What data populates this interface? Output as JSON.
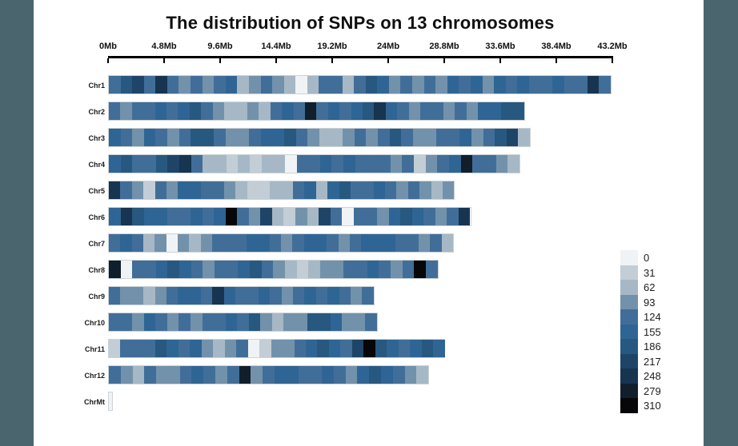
{
  "title": "The distribution of SNPs on 13 chromosomes",
  "frame_color": "#4b656e",
  "axis": {
    "unit": "Mb",
    "tick_labels": [
      "0Mb",
      "4.8Mb",
      "9.6Mb",
      "14.4Mb",
      "19.2Mb",
      "24Mb",
      "28.8Mb",
      "33.6Mb",
      "38.4Mb",
      "43.2Mb"
    ],
    "tick_positions_mb": [
      0,
      4.8,
      9.6,
      14.4,
      19.2,
      24,
      28.8,
      33.6,
      38.4,
      43.2
    ],
    "max_mb": 43.2
  },
  "legend": {
    "values": [
      0,
      31,
      62,
      93,
      124,
      155,
      186,
      217,
      248,
      279,
      310
    ],
    "colors": {
      "0": "#f0f3f5",
      "31": "#c3cdd5",
      "62": "#a6b8c5",
      "93": "#7292ab",
      "124": "#416e99",
      "155": "#2f6594",
      "186": "#275880",
      "217": "#1e4568",
      "248": "#173450",
      "279": "#111e2b",
      "310": "#070709"
    }
  },
  "chart_data": {
    "type": "heatmap",
    "title": "The distribution of SNPs on 13 chromosomes",
    "xlabel": "Position (Mb)",
    "x_range_mb": [
      0,
      43.2
    ],
    "bin_size_mb": 1,
    "value_scale": [
      0,
      31,
      62,
      93,
      124,
      155,
      186,
      217,
      248,
      279,
      310
    ],
    "legend_position": "right",
    "chromosomes": [
      {
        "name": "Chr1",
        "length_mb": 43.1,
        "bins": [
          124,
          186,
          217,
          124,
          248,
          124,
          93,
          124,
          93,
          124,
          155,
          62,
          93,
          124,
          93,
          62,
          0,
          62,
          124,
          124,
          62,
          124,
          186,
          155,
          93,
          124,
          93,
          124,
          93,
          155,
          124,
          155,
          93,
          155,
          124,
          155,
          124,
          124,
          155,
          124,
          124,
          248,
          124
        ]
      },
      {
        "name": "Chr2",
        "length_mb": 35.7,
        "bins": [
          124,
          93,
          124,
          124,
          155,
          124,
          155,
          186,
          124,
          93,
          62,
          62,
          93,
          62,
          124,
          155,
          124,
          279,
          124,
          155,
          124,
          155,
          186,
          248,
          155,
          124,
          93,
          124,
          124,
          93,
          124,
          93,
          155,
          155,
          186,
          186
        ]
      },
      {
        "name": "Chr3",
        "length_mb": 36.2,
        "bins": [
          155,
          124,
          93,
          155,
          124,
          93,
          124,
          186,
          186,
          124,
          93,
          93,
          124,
          155,
          155,
          186,
          124,
          93,
          62,
          62,
          93,
          124,
          93,
          124,
          186,
          124,
          93,
          93,
          124,
          124,
          155,
          93,
          124,
          186,
          217,
          62
        ]
      },
      {
        "name": "Chr4",
        "length_mb": 35.3,
        "bins": [
          155,
          186,
          124,
          124,
          186,
          217,
          248,
          124,
          62,
          62,
          31,
          62,
          31,
          62,
          62,
          0,
          124,
          124,
          155,
          124,
          155,
          124,
          124,
          124,
          93,
          124,
          31,
          93,
          124,
          155,
          279,
          124,
          124,
          93,
          62
        ]
      },
      {
        "name": "Chr5",
        "length_mb": 29.7,
        "bins": [
          248,
          124,
          93,
          31,
          124,
          93,
          155,
          155,
          124,
          124,
          93,
          62,
          31,
          31,
          62,
          62,
          124,
          155,
          62,
          155,
          186,
          124,
          124,
          155,
          124,
          93,
          124,
          93,
          62,
          93
        ]
      },
      {
        "name": "Chr6",
        "length_mb": 31.1,
        "bins": [
          155,
          248,
          186,
          155,
          155,
          124,
          124,
          155,
          124,
          155,
          310,
          124,
          93,
          217,
          62,
          31,
          93,
          62,
          217,
          124,
          0,
          124,
          124,
          93,
          155,
          186,
          155,
          124,
          93,
          124,
          248
        ]
      },
      {
        "name": "Chr7",
        "length_mb": 29.6,
        "bins": [
          124,
          155,
          124,
          62,
          93,
          0,
          93,
          62,
          93,
          124,
          124,
          124,
          155,
          155,
          124,
          93,
          124,
          155,
          155,
          124,
          93,
          124,
          155,
          155,
          155,
          124,
          124,
          93,
          124,
          62
        ]
      },
      {
        "name": "Chr8",
        "length_mb": 28.3,
        "bins": [
          279,
          0,
          124,
          124,
          155,
          186,
          155,
          124,
          93,
          124,
          124,
          155,
          186,
          124,
          93,
          62,
          31,
          62,
          93,
          93,
          124,
          124,
          155,
          124,
          93,
          124,
          310,
          124
        ]
      },
      {
        "name": "Chr9",
        "length_mb": 22.8,
        "bins": [
          124,
          93,
          93,
          62,
          93,
          124,
          155,
          155,
          124,
          248,
          155,
          124,
          124,
          155,
          124,
          93,
          124,
          155,
          124,
          155,
          124,
          93,
          124
        ]
      },
      {
        "name": "Chr10",
        "length_mb": 23.1,
        "bins": [
          124,
          124,
          93,
          155,
          124,
          93,
          124,
          93,
          124,
          124,
          155,
          124,
          186,
          93,
          62,
          93,
          93,
          186,
          186,
          155,
          93,
          93,
          124
        ]
      },
      {
        "name": "Chr11",
        "length_mb": 28.9,
        "bins": [
          31,
          124,
          124,
          124,
          186,
          155,
          124,
          155,
          93,
          62,
          93,
          124,
          0,
          31,
          93,
          93,
          124,
          155,
          186,
          155,
          124,
          217,
          310,
          186,
          155,
          124,
          155,
          186,
          155
        ]
      },
      {
        "name": "Chr12",
        "length_mb": 27.5,
        "bins": [
          124,
          93,
          62,
          124,
          93,
          93,
          124,
          155,
          124,
          93,
          124,
          279,
          93,
          124,
          155,
          155,
          124,
          124,
          155,
          124,
          93,
          155,
          186,
          155,
          124,
          93,
          62
        ]
      },
      {
        "name": "ChrMt",
        "length_mb": 0.4,
        "bins": [
          0
        ]
      }
    ]
  }
}
